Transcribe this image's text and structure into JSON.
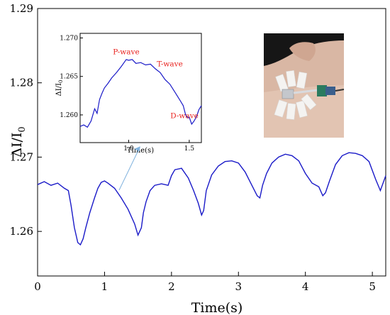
{
  "chart_data": {
    "type": "line",
    "xlabel": "Time(s)",
    "ylabel": "ΔI/I0",
    "xlim": [
      0,
      5.2
    ],
    "ylim": [
      1.254,
      1.29
    ],
    "x_ticks": [
      "0",
      "1",
      "2",
      "3",
      "4",
      "5"
    ],
    "y_ticks": [
      "1.26",
      "1.27",
      "1.28",
      "1.29"
    ],
    "grid": false,
    "line_color": "#1a1ac8",
    "series": [
      {
        "x": [
          0,
          0.1,
          0.2,
          0.3,
          0.4,
          0.46,
          0.5,
          0.55,
          0.6,
          0.64,
          0.68,
          0.72,
          0.78,
          0.85,
          0.9,
          0.95,
          1.0,
          1.05,
          1.15,
          1.25,
          1.35,
          1.45,
          1.5,
          1.55,
          1.58,
          1.62,
          1.68,
          1.75,
          1.85,
          1.95,
          2.0,
          2.05,
          2.15,
          2.25,
          2.33,
          2.4,
          2.45,
          2.48,
          2.52,
          2.6,
          2.7,
          2.8,
          2.9,
          3.0,
          3.1,
          3.2,
          3.28,
          3.32,
          3.36,
          3.42,
          3.5,
          3.6,
          3.7,
          3.8,
          3.9,
          4.0,
          4.1,
          4.2,
          4.26,
          4.3,
          4.36,
          4.45,
          4.55,
          4.65,
          4.75,
          4.85,
          4.95,
          5.05,
          5.12,
          5.16,
          5.2
        ],
        "y": [
          1.2663,
          1.2667,
          1.2662,
          1.2665,
          1.2658,
          1.2655,
          1.2635,
          1.2605,
          1.2585,
          1.2582,
          1.259,
          1.2605,
          1.2625,
          1.2645,
          1.2658,
          1.2666,
          1.2668,
          1.2665,
          1.2658,
          1.2645,
          1.263,
          1.261,
          1.2595,
          1.2605,
          1.2625,
          1.264,
          1.2655,
          1.2662,
          1.2664,
          1.2662,
          1.2675,
          1.2683,
          1.2685,
          1.2672,
          1.2655,
          1.2638,
          1.2622,
          1.2628,
          1.2655,
          1.2676,
          1.2688,
          1.2694,
          1.2695,
          1.2692,
          1.268,
          1.2662,
          1.2648,
          1.2645,
          1.2662,
          1.2678,
          1.2692,
          1.27,
          1.2704,
          1.2702,
          1.2695,
          1.2678,
          1.2665,
          1.266,
          1.2648,
          1.2652,
          1.2668,
          1.269,
          1.2702,
          1.2706,
          1.2705,
          1.2702,
          1.2694,
          1.267,
          1.2655,
          1.2665,
          1.2675
        ]
      }
    ],
    "inset": {
      "type": "line",
      "xlabel": "Time(s)",
      "ylabel": "ΔI/I0",
      "xlim": [
        0.6,
        1.6
      ],
      "ylim": [
        1.2564,
        1.2706
      ],
      "x_ticks": [
        "1.0",
        "1.5"
      ],
      "y_ticks": [
        "1.260",
        "1.265",
        "1.270"
      ],
      "x": [
        0.6,
        0.63,
        0.66,
        0.69,
        0.72,
        0.74,
        0.76,
        0.78,
        0.8,
        0.83,
        0.86,
        0.9,
        0.94,
        0.98,
        1.0,
        1.03,
        1.06,
        1.1,
        1.14,
        1.18,
        1.22,
        1.26,
        1.3,
        1.34,
        1.38,
        1.42,
        1.45,
        1.47,
        1.49,
        1.5,
        1.52,
        1.54,
        1.56,
        1.58,
        1.6
      ],
      "y": [
        1.2585,
        1.2587,
        1.2584,
        1.2592,
        1.2608,
        1.2602,
        1.262,
        1.2628,
        1.2635,
        1.2641,
        1.2648,
        1.2655,
        1.2663,
        1.2672,
        1.2671,
        1.2672,
        1.2667,
        1.2668,
        1.2665,
        1.2666,
        1.266,
        1.2655,
        1.2646,
        1.264,
        1.263,
        1.262,
        1.2612,
        1.26,
        1.2596,
        1.2597,
        1.2588,
        1.2592,
        1.2598,
        1.2607,
        1.2612
      ],
      "annotations": [
        {
          "text": "P-wave",
          "x": 0.98,
          "y": 1.2679
        },
        {
          "text": "T-wave",
          "x": 1.34,
          "y": 1.2663
        },
        {
          "text": "D-wave",
          "x": 1.46,
          "y": 1.2596
        }
      ]
    },
    "photo": {
      "description": "wrist with attached sensor patch"
    }
  }
}
